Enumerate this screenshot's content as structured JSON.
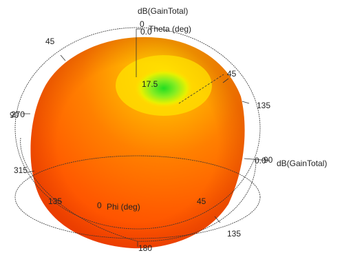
{
  "axes": {
    "z_axis_title": "dB(GainTotal)",
    "x_axis_title": "dB(GainTotal)",
    "theta_label": "Theta (deg)",
    "phi_label": "Phi (deg)",
    "zero_label": "0",
    "gain_zero_label": "0.0",
    "peak_value_label": "17.5"
  },
  "ticks": {
    "t45_top_left": "45",
    "t45_right": "45",
    "t135_right": "135",
    "t90_right": "90",
    "t90_left": "90",
    "t270_left": "270",
    "t315_left": "315",
    "t135_bottom_left": "135",
    "t0_phi": "0",
    "t45_bottom": "45",
    "t135_bottom_right": "135",
    "t180_bottom": "180",
    "t0_right": "0.0"
  },
  "colors": {
    "low": "#ff3a00",
    "mid": "#ff8c00",
    "high": "#ffe000",
    "peak": "#22dd22",
    "grid": "#333333"
  }
}
